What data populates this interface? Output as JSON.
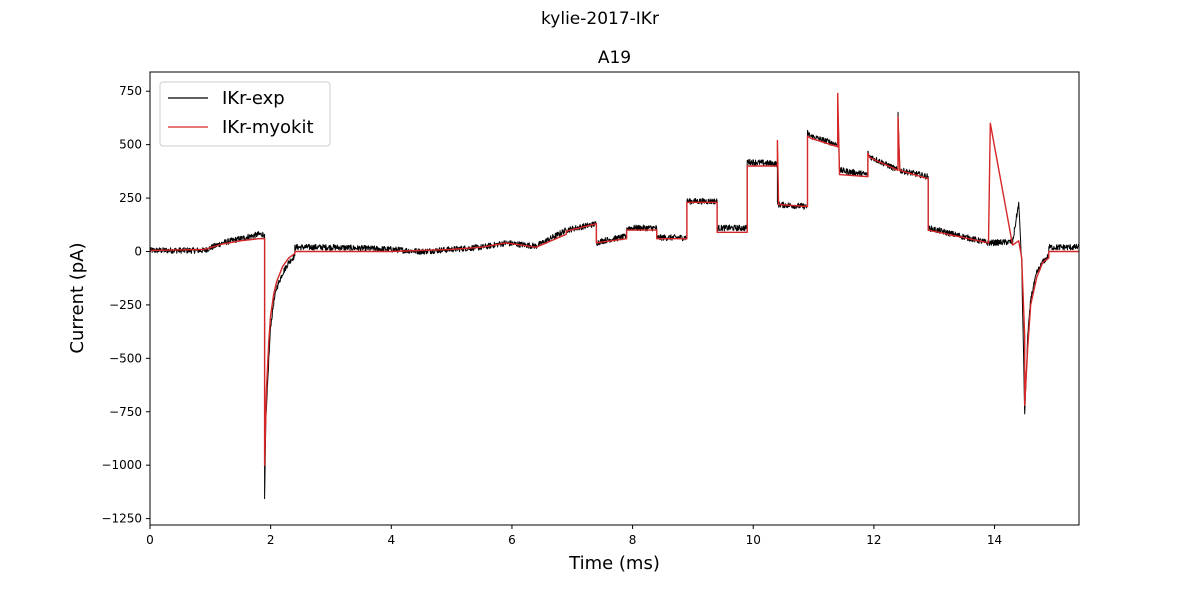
{
  "figure": {
    "suptitle": "kylie-2017-IKr"
  },
  "chart_data": {
    "type": "line",
    "title": "A19",
    "xlabel": "Time (ms)",
    "ylabel": "Current (pA)",
    "xlim": [
      0,
      15.4
    ],
    "ylim": [
      -1280,
      840
    ],
    "xticks": [
      0,
      2,
      4,
      6,
      8,
      10,
      12,
      14
    ],
    "yticks": [
      750,
      500,
      250,
      0,
      -250,
      -500,
      -750,
      -1000,
      -1250
    ],
    "grid": false,
    "legend": {
      "location": "upper-left",
      "entries": [
        "IKr-exp",
        "IKr-myokit"
      ]
    },
    "colors": {
      "IKr-exp": "#000000",
      "IKr-myokit": "#d62728"
    },
    "series": [
      {
        "name": "IKr-myokit",
        "x": [
          0,
          0.9,
          1.2,
          1.5,
          1.8,
          1.9,
          1.9,
          1.93,
          1.97,
          2.0,
          2.05,
          2.1,
          2.2,
          2.3,
          2.4,
          2.4,
          3.0,
          4.0,
          4.5,
          5.0,
          5.5,
          5.9,
          5.9,
          6.4,
          6.4,
          6.9,
          6.9,
          7.4,
          7.4,
          7.5,
          7.9,
          7.9,
          8.4,
          8.4,
          8.9,
          8.9,
          9.4,
          9.4,
          9.9,
          9.9,
          10.4,
          10.4,
          10.42,
          10.9,
          10.9,
          10.95,
          11.4,
          11.4,
          11.43,
          11.9,
          11.9,
          11.93,
          12.4,
          12.4,
          12.43,
          12.9,
          12.9,
          13.9,
          13.9,
          13.93,
          14.3,
          14.4,
          14.45,
          14.5,
          14.5,
          14.55,
          14.6,
          14.7,
          14.8,
          14.9,
          14.9,
          15.4
        ],
        "y": [
          5,
          10,
          35,
          50,
          60,
          60,
          -1000,
          -650,
          -420,
          -300,
          -200,
          -140,
          -70,
          -30,
          -10,
          0,
          0,
          0,
          5,
          10,
          20,
          40,
          40,
          20,
          20,
          80,
          95,
          130,
          40,
          45,
          60,
          100,
          100,
          60,
          60,
          230,
          230,
          90,
          90,
          400,
          400,
          520,
          220,
          210,
          540,
          530,
          490,
          740,
          360,
          350,
          460,
          440,
          380,
          630,
          380,
          340,
          100,
          40,
          40,
          600,
          30,
          50,
          -30,
          -400,
          -720,
          -450,
          -250,
          -120,
          -50,
          -30,
          0,
          0
        ]
      },
      {
        "name": "IKr-exp",
        "x": [
          0,
          0.9,
          1.2,
          1.5,
          1.8,
          1.9,
          1.9,
          1.92,
          1.97,
          2.0,
          2.05,
          2.1,
          2.2,
          2.3,
          2.4,
          2.4,
          3.0,
          4.0,
          4.5,
          5.0,
          5.5,
          5.9,
          5.9,
          6.4,
          6.4,
          6.9,
          6.9,
          7.4,
          7.4,
          7.5,
          7.9,
          7.9,
          8.4,
          8.4,
          8.9,
          8.9,
          9.4,
          9.4,
          9.9,
          9.9,
          10.4,
          10.4,
          10.9,
          10.9,
          10.95,
          11.4,
          11.4,
          11.43,
          11.9,
          11.9,
          11.93,
          12.4,
          12.4,
          12.43,
          12.9,
          12.9,
          13.9,
          13.9,
          14.3,
          14.4,
          14.45,
          14.5,
          14.55,
          14.6,
          14.7,
          14.8,
          14.9,
          14.9,
          15.4
        ],
        "y": [
          5,
          5,
          40,
          60,
          80,
          80,
          -1170,
          -800,
          -500,
          -350,
          -240,
          -170,
          -100,
          -50,
          -20,
          20,
          20,
          10,
          0,
          10,
          20,
          40,
          40,
          25,
          25,
          100,
          100,
          130,
          40,
          50,
          70,
          110,
          110,
          65,
          65,
          235,
          235,
          110,
          110,
          420,
          410,
          220,
          210,
          555,
          540,
          500,
          700,
          380,
          360,
          460,
          445,
          380,
          650,
          380,
          350,
          110,
          40,
          40,
          45,
          225,
          -50,
          -760,
          -400,
          -220,
          -100,
          -50,
          -20,
          20,
          20
        ]
      }
    ]
  }
}
